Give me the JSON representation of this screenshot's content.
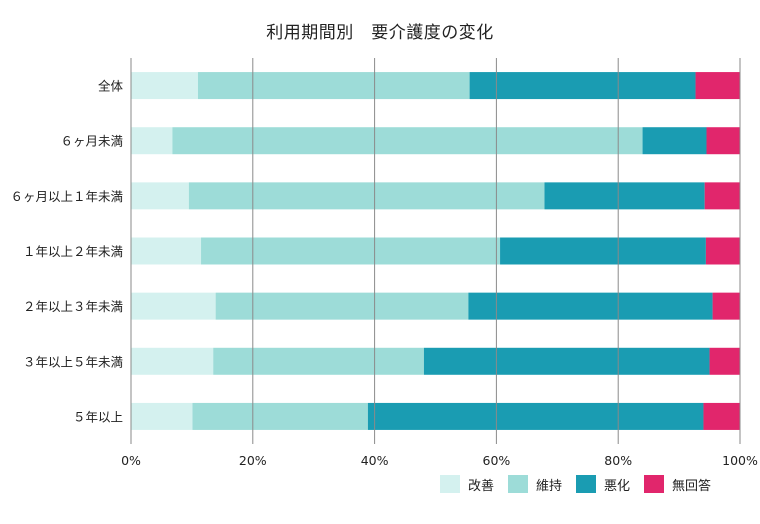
{
  "chart_data": {
    "type": "bar",
    "orientation": "horizontal",
    "stacked": true,
    "title": "利用期間別　要介護度の変化",
    "categories": [
      "全体",
      "６ヶ月未満",
      "６ヶ月以上１年未満",
      "１年以上２年未満",
      "２年以上３年未満",
      "３年以上５年未満",
      "５年以上"
    ],
    "series": [
      {
        "name": "改善",
        "color": "#d4f1ef",
        "values": [
          11.0,
          6.8,
          9.5,
          11.5,
          13.9,
          13.5,
          10.1
        ]
      },
      {
        "name": "維持",
        "color": "#9ddcd8",
        "values": [
          44.6,
          77.2,
          58.4,
          49.1,
          41.5,
          34.6,
          28.8
        ]
      },
      {
        "name": "悪化",
        "color": "#1a9cb2",
        "values": [
          37.1,
          10.5,
          26.3,
          33.8,
          40.1,
          46.9,
          55.1
        ]
      },
      {
        "name": "無回答",
        "color": "#e1266c",
        "values": [
          7.3,
          5.5,
          5.8,
          5.6,
          4.5,
          5.0,
          6.0
        ]
      }
    ],
    "xlim": [
      0,
      100
    ],
    "xticks": [
      "0%",
      "20%",
      "40%",
      "60%",
      "80%",
      "100%"
    ],
    "grid": true,
    "legend_position": "bottom-right"
  }
}
